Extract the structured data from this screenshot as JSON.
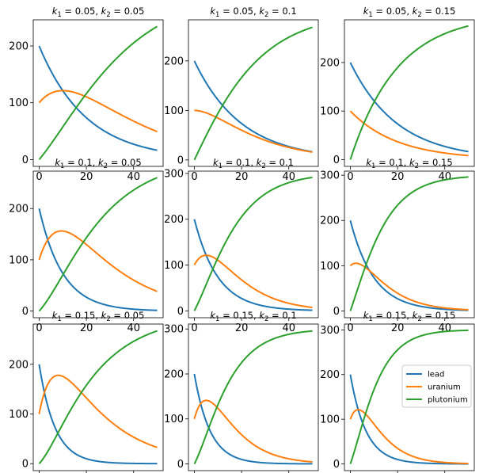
{
  "figure": {
    "colors": {
      "lead": "#1f77b4",
      "uranium": "#ff7f0e",
      "plutonium": "#2ca02c"
    }
  },
  "chart_data": [
    {
      "type": "line",
      "title": "k1 = 0.05, k2 = 0.05",
      "title_parts": {
        "k1_sym": "k",
        "k1_sub": "1",
        "k1_val": "= 0.05,",
        "k2_sym": "k",
        "k2_sub": "2",
        "k2_val": "= 0.05"
      },
      "k1": 0.05,
      "k2": 0.05,
      "xlim": [
        -2.5,
        52.5
      ],
      "ylim": [
        -12,
        246
      ],
      "xticks": [
        0,
        20,
        40
      ],
      "yticks": [
        0,
        100,
        200
      ],
      "series": [
        {
          "name": "lead",
          "color": "#1f77b4"
        },
        {
          "name": "uranium",
          "color": "#ff7f0e"
        },
        {
          "name": "plutonium",
          "color": "#2ca02c"
        }
      ],
      "legend": null
    },
    {
      "type": "line",
      "title": "k1 = 0.05, k2 = 0.1",
      "title_parts": {
        "k1_sym": "k",
        "k1_sub": "1",
        "k1_val": "= 0.05,",
        "k2_sym": "k",
        "k2_sub": "2",
        "k2_val": "= 0.1"
      },
      "k1": 0.05,
      "k2": 0.1,
      "xlim": [
        -2.5,
        52.5
      ],
      "ylim": [
        -13,
        283
      ],
      "xticks": [
        0,
        20,
        40
      ],
      "yticks": [
        0,
        100,
        200
      ],
      "series": [
        {
          "name": "lead",
          "color": "#1f77b4"
        },
        {
          "name": "uranium",
          "color": "#ff7f0e"
        },
        {
          "name": "plutonium",
          "color": "#2ca02c"
        }
      ],
      "legend": null
    },
    {
      "type": "line",
      "title": "k1 = 0.05, k2 = 0.15",
      "title_parts": {
        "k1_sym": "k",
        "k1_sub": "1",
        "k1_val": "= 0.05,",
        "k2_sym": "k",
        "k2_sub": "2",
        "k2_val": "= 0.15"
      },
      "k1": 0.05,
      "k2": 0.15,
      "xlim": [
        -2.5,
        52.5
      ],
      "ylim": [
        -14,
        288
      ],
      "xticks": [
        0,
        20,
        40
      ],
      "yticks": [
        0,
        100,
        200
      ],
      "series": [
        {
          "name": "lead",
          "color": "#1f77b4"
        },
        {
          "name": "uranium",
          "color": "#ff7f0e"
        },
        {
          "name": "plutonium",
          "color": "#2ca02c"
        }
      ],
      "legend": null
    },
    {
      "type": "line",
      "title": "k1 = 0.1, k2 = 0.05",
      "title_parts": {
        "k1_sym": "k",
        "k1_sub": "1",
        "k1_val": "= 0.1,",
        "k2_sym": "k",
        "k2_sub": "2",
        "k2_val": "= 0.05"
      },
      "k1": 0.1,
      "k2": 0.05,
      "xlim": [
        -2.5,
        52.5
      ],
      "ylim": [
        -13,
        273
      ],
      "xticks": [
        0,
        20,
        40
      ],
      "yticks": [
        0,
        100,
        200
      ],
      "series": [
        {
          "name": "lead",
          "color": "#1f77b4"
        },
        {
          "name": "uranium",
          "color": "#ff7f0e"
        },
        {
          "name": "plutonium",
          "color": "#2ca02c"
        }
      ],
      "legend": null
    },
    {
      "type": "line",
      "title": "k1 = 0.1, k2 = 0.1",
      "title_parts": {
        "k1_sym": "k",
        "k1_sub": "1",
        "k1_val": "= 0.1,",
        "k2_sym": "k",
        "k2_sub": "2",
        "k2_val": "= 0.1"
      },
      "k1": 0.1,
      "k2": 0.1,
      "xlim": [
        -2.5,
        52.5
      ],
      "ylim": [
        -15,
        305
      ],
      "xticks": [
        0,
        20,
        40
      ],
      "yticks": [
        0,
        100,
        200,
        300
      ],
      "series": [
        {
          "name": "lead",
          "color": "#1f77b4"
        },
        {
          "name": "uranium",
          "color": "#ff7f0e"
        },
        {
          "name": "plutonium",
          "color": "#2ca02c"
        }
      ],
      "legend": null
    },
    {
      "type": "line",
      "title": "k1 = 0.1, k2 = 0.15",
      "title_parts": {
        "k1_sym": "k",
        "k1_sub": "1",
        "k1_val": "= 0.1,",
        "k2_sym": "k",
        "k2_sub": "2",
        "k2_val": "= 0.15"
      },
      "k1": 0.1,
      "k2": 0.15,
      "xlim": [
        -2.5,
        52.5
      ],
      "ylim": [
        -15,
        309
      ],
      "xticks": [
        0,
        20,
        40
      ],
      "yticks": [
        0,
        100,
        200,
        300
      ],
      "series": [
        {
          "name": "lead",
          "color": "#1f77b4"
        },
        {
          "name": "uranium",
          "color": "#ff7f0e"
        },
        {
          "name": "plutonium",
          "color": "#2ca02c"
        }
      ],
      "legend": null
    },
    {
      "type": "line",
      "title": "k1 = 0.15, k2 = 0.05",
      "title_parts": {
        "k1_sym": "k",
        "k1_sub": "1",
        "k1_val": "= 0.15,",
        "k2_sym": "k",
        "k2_sub": "2",
        "k2_val": "= 0.05"
      },
      "k1": 0.15,
      "k2": 0.05,
      "xlim": [
        -2.5,
        52.5
      ],
      "ylim": [
        -14,
        281
      ],
      "xticks": [
        0,
        20,
        40
      ],
      "yticks": [
        0,
        100,
        200
      ],
      "series": [
        {
          "name": "lead",
          "color": "#1f77b4"
        },
        {
          "name": "uranium",
          "color": "#ff7f0e"
        },
        {
          "name": "plutonium",
          "color": "#2ca02c"
        }
      ],
      "legend": null
    },
    {
      "type": "line",
      "title": "k1 = 0.15, k2 = 0.1",
      "title_parts": {
        "k1_sym": "k",
        "k1_sub": "1",
        "k1_val": "= 0.15,",
        "k2_sym": "k",
        "k2_sub": "2",
        "k2_val": "= 0.1"
      },
      "k1": 0.15,
      "k2": 0.1,
      "xlim": [
        -2.5,
        52.5
      ],
      "ylim": [
        -15,
        311
      ],
      "xticks": [
        0,
        20,
        40
      ],
      "yticks": [
        0,
        100,
        200,
        300
      ],
      "series": [
        {
          "name": "lead",
          "color": "#1f77b4"
        },
        {
          "name": "uranium",
          "color": "#ff7f0e"
        },
        {
          "name": "plutonium",
          "color": "#2ca02c"
        }
      ],
      "legend": null
    },
    {
      "type": "line",
      "title": "k1 = 0.15, k2 = 0.15",
      "title_parts": {
        "k1_sym": "k",
        "k1_sub": "1",
        "k1_val": "= 0.15,",
        "k2_sym": "k",
        "k2_sub": "2",
        "k2_val": "= 0.15"
      },
      "k1": 0.15,
      "k2": 0.15,
      "xlim": [
        -2.5,
        52.5
      ],
      "ylim": [
        -15,
        313
      ],
      "xticks": [
        0,
        20,
        40
      ],
      "yticks": [
        0,
        100,
        200,
        300
      ],
      "series": [
        {
          "name": "lead",
          "color": "#1f77b4"
        },
        {
          "name": "uranium",
          "color": "#ff7f0e"
        },
        {
          "name": "plutonium",
          "color": "#2ca02c"
        }
      ],
      "legend": {
        "placement": "center-right",
        "entries": [
          "lead",
          "uranium",
          "plutonium"
        ]
      }
    }
  ],
  "model": {
    "t_start": 0,
    "t_end": 50,
    "initial": {
      "lead": 200,
      "uranium": 100,
      "plutonium": 0
    }
  }
}
